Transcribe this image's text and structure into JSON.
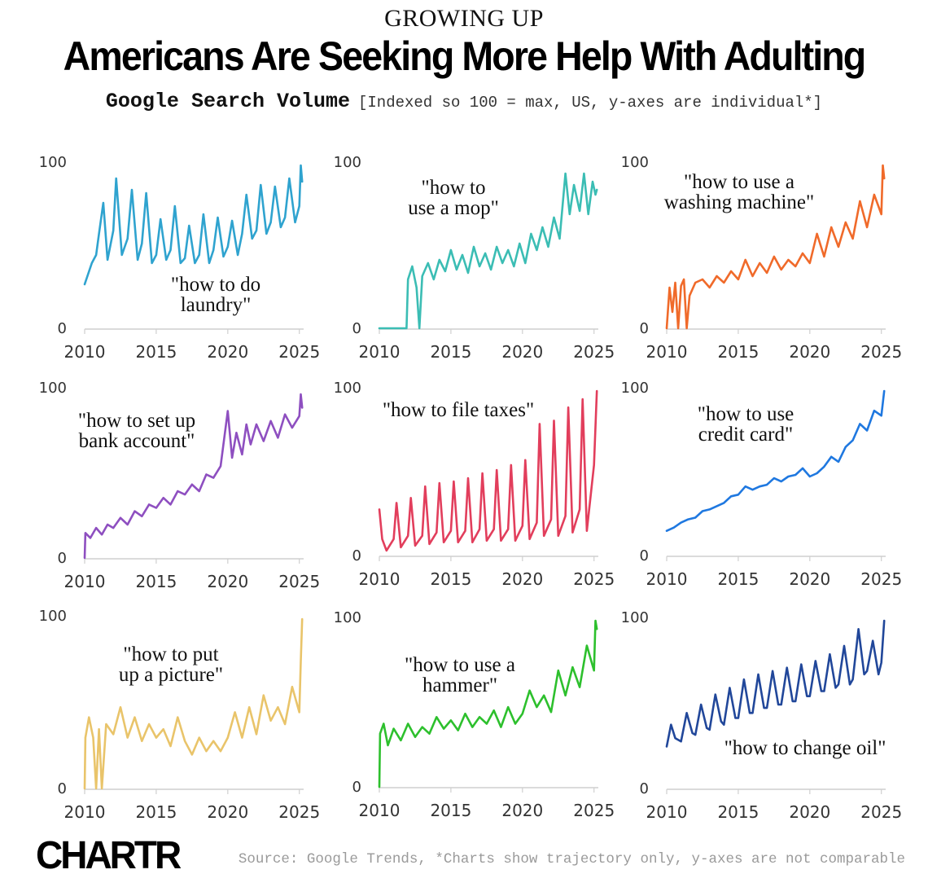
{
  "header": {
    "kicker": "GROWING UP",
    "title": "Americans Are Seeking More Help With Adulting",
    "subtitle_main": "Google Search Volume",
    "subtitle_note": "[Indexed so 100 = max, US, y-axes are individual*]"
  },
  "footer": {
    "logo": "CHARTR",
    "source": "Source: Google Trends, *Charts show trajectory only, y-axes are not comparable"
  },
  "chart_data": [
    {
      "type": "line",
      "title": "\"how to do laundry\"",
      "annotation": [
        "\"how to do",
        "laundry\""
      ],
      "color": "#2fa3cf",
      "xlim": [
        2010,
        2025.3
      ],
      "ylim": [
        0,
        100
      ],
      "yticks": [
        0,
        100
      ],
      "xticks": [
        2010,
        2015,
        2020,
        2025
      ],
      "x": [
        2010.0,
        2010.5,
        2010.8,
        2011.0,
        2011.3,
        2011.6,
        2012.0,
        2012.2,
        2012.6,
        2013.0,
        2013.3,
        2013.7,
        2014.0,
        2014.3,
        2014.7,
        2015.0,
        2015.3,
        2015.7,
        2016.0,
        2016.3,
        2016.7,
        2017.0,
        2017.3,
        2017.7,
        2018.0,
        2018.3,
        2018.7,
        2019.0,
        2019.3,
        2019.7,
        2020.0,
        2020.3,
        2020.7,
        2021.0,
        2021.3,
        2021.7,
        2022.0,
        2022.3,
        2022.7,
        2023.0,
        2023.3,
        2023.7,
        2024.0,
        2024.3,
        2024.7,
        2025.0,
        2025.1,
        2025.2
      ],
      "y": [
        27,
        40,
        45,
        58,
        77,
        42,
        60,
        92,
        45,
        55,
        85,
        42,
        52,
        83,
        40,
        45,
        67,
        42,
        48,
        75,
        40,
        43,
        63,
        40,
        45,
        70,
        40,
        48,
        68,
        44,
        50,
        66,
        45,
        58,
        82,
        55,
        60,
        88,
        58,
        65,
        87,
        62,
        68,
        92,
        65,
        75,
        100,
        90
      ]
    },
    {
      "type": "line",
      "title": "\"how to use a mop\"",
      "annotation": [
        "\"how to",
        "use a mop\""
      ],
      "color": "#3bbdb4",
      "xlim": [
        2010,
        2025.3
      ],
      "ylim": [
        0,
        100
      ],
      "yticks": [
        0,
        100
      ],
      "xticks": [
        2010,
        2015,
        2020,
        2025
      ],
      "x": [
        2010.0,
        2011.9,
        2012.0,
        2012.3,
        2012.6,
        2012.8,
        2013.0,
        2013.4,
        2013.8,
        2014.2,
        2014.6,
        2015.0,
        2015.4,
        2015.8,
        2016.2,
        2016.6,
        2017.0,
        2017.4,
        2017.8,
        2018.2,
        2018.6,
        2019.0,
        2019.4,
        2019.8,
        2020.2,
        2020.6,
        2021.0,
        2021.4,
        2021.8,
        2022.2,
        2022.6,
        2023.0,
        2023.3,
        2023.6,
        2024.0,
        2024.3,
        2024.6,
        2024.9,
        2025.1,
        2025.2
      ],
      "y": [
        0,
        0,
        30,
        38,
        25,
        0,
        32,
        40,
        30,
        42,
        35,
        48,
        36,
        45,
        34,
        50,
        38,
        46,
        36,
        50,
        40,
        48,
        38,
        52,
        40,
        58,
        48,
        62,
        50,
        68,
        55,
        95,
        70,
        88,
        72,
        95,
        70,
        90,
        82,
        85
      ]
    },
    {
      "type": "line",
      "title": "\"how to use a washing machine\"",
      "annotation": [
        "\"how to use a",
        "washing machine\""
      ],
      "color": "#f06a2a",
      "xlim": [
        2010,
        2025.3
      ],
      "ylim": [
        0,
        100
      ],
      "yticks": [
        0,
        100
      ],
      "xticks": [
        2010,
        2015,
        2020,
        2025
      ],
      "x": [
        2010.0,
        2010.2,
        2010.4,
        2010.6,
        2010.8,
        2011.0,
        2011.2,
        2011.4,
        2011.6,
        2012.0,
        2012.5,
        2013.0,
        2013.5,
        2014.0,
        2014.5,
        2015.0,
        2015.5,
        2016.0,
        2016.5,
        2017.0,
        2017.5,
        2018.0,
        2018.5,
        2019.0,
        2019.5,
        2020.0,
        2020.5,
        2021.0,
        2021.5,
        2022.0,
        2022.5,
        2023.0,
        2023.5,
        2024.0,
        2024.5,
        2025.0,
        2025.1,
        2025.2
      ],
      "y": [
        0,
        25,
        10,
        28,
        0,
        26,
        30,
        0,
        20,
        28,
        30,
        25,
        32,
        28,
        35,
        30,
        42,
        32,
        40,
        34,
        44,
        36,
        42,
        38,
        46,
        40,
        58,
        44,
        62,
        50,
        65,
        55,
        78,
        62,
        82,
        70,
        100,
        92
      ]
    },
    {
      "type": "line",
      "title": "\"how to set up bank account\"",
      "annotation": [
        "\"how to set up",
        "bank account\""
      ],
      "color": "#8e4fc0",
      "xlim": [
        2010,
        2025.3
      ],
      "ylim": [
        0,
        100
      ],
      "yticks": [
        0,
        100
      ],
      "xticks": [
        2010,
        2015,
        2020,
        2025
      ],
      "x": [
        2010.0,
        2010.05,
        2010.4,
        2010.8,
        2011.2,
        2011.6,
        2012.0,
        2012.5,
        2013.0,
        2013.5,
        2014.0,
        2014.5,
        2015.0,
        2015.5,
        2016.0,
        2016.5,
        2017.0,
        2017.5,
        2018.0,
        2018.5,
        2019.0,
        2019.5,
        2020.0,
        2020.3,
        2020.6,
        2021.0,
        2021.3,
        2021.6,
        2022.0,
        2022.5,
        2023.0,
        2023.5,
        2024.0,
        2024.5,
        2025.0,
        2025.1,
        2025.2
      ],
      "y": [
        0,
        15,
        12,
        18,
        14,
        20,
        18,
        24,
        20,
        28,
        25,
        32,
        30,
        36,
        32,
        40,
        38,
        44,
        40,
        50,
        48,
        55,
        88,
        60,
        75,
        62,
        80,
        68,
        80,
        70,
        82,
        72,
        86,
        78,
        85,
        98,
        90
      ]
    },
    {
      "type": "line",
      "title": "\"how to file taxes\"",
      "annotation": [
        "\"how to file taxes\""
      ],
      "color": "#e23e5c",
      "xlim": [
        2010,
        2025.3
      ],
      "ylim": [
        0,
        100
      ],
      "yticks": [
        0,
        100
      ],
      "xticks": [
        2010,
        2015,
        2020,
        2025
      ],
      "x": [
        2010.0,
        2010.2,
        2010.5,
        2011.0,
        2011.2,
        2011.5,
        2012.0,
        2012.2,
        2012.5,
        2013.0,
        2013.2,
        2013.5,
        2014.0,
        2014.2,
        2014.5,
        2015.0,
        2015.2,
        2015.5,
        2016.0,
        2016.2,
        2016.5,
        2017.0,
        2017.2,
        2017.5,
        2018.0,
        2018.2,
        2018.5,
        2019.0,
        2019.2,
        2019.5,
        2020.0,
        2020.2,
        2020.5,
        2021.0,
        2021.2,
        2021.5,
        2022.0,
        2022.2,
        2022.5,
        2023.0,
        2023.2,
        2023.5,
        2024.0,
        2024.2,
        2024.5,
        2025.0,
        2025.2
      ],
      "y": [
        28,
        10,
        3,
        10,
        32,
        5,
        12,
        35,
        6,
        12,
        42,
        7,
        14,
        44,
        8,
        15,
        45,
        8,
        15,
        47,
        8,
        16,
        50,
        9,
        16,
        52,
        9,
        16,
        55,
        9,
        18,
        58,
        10,
        20,
        80,
        12,
        22,
        82,
        12,
        24,
        90,
        14,
        28,
        95,
        15,
        55,
        100
      ]
    },
    {
      "type": "line",
      "title": "\"how to use credit card\"",
      "annotation": [
        "\"how to use",
        "credit card\""
      ],
      "color": "#1f78e0",
      "xlim": [
        2010,
        2025.3
      ],
      "ylim": [
        0,
        100
      ],
      "yticks": [
        0,
        100
      ],
      "xticks": [
        2010,
        2015,
        2020,
        2025
      ],
      "x": [
        2010.0,
        2010.5,
        2011.0,
        2011.5,
        2012.0,
        2012.5,
        2013.0,
        2013.5,
        2014.0,
        2014.5,
        2015.0,
        2015.5,
        2016.0,
        2016.5,
        2017.0,
        2017.5,
        2018.0,
        2018.5,
        2019.0,
        2019.5,
        2020.0,
        2020.5,
        2021.0,
        2021.5,
        2022.0,
        2022.5,
        2023.0,
        2023.5,
        2024.0,
        2024.5,
        2025.0,
        2025.2
      ],
      "y": [
        15,
        17,
        20,
        22,
        23,
        27,
        28,
        30,
        32,
        36,
        37,
        42,
        40,
        42,
        43,
        47,
        45,
        48,
        49,
        53,
        48,
        50,
        54,
        60,
        57,
        66,
        70,
        80,
        76,
        88,
        85,
        100
      ]
    },
    {
      "type": "line",
      "title": "\"how to put up a picture\"",
      "annotation": [
        "\"how to put",
        "up a picture\""
      ],
      "color": "#e9c46a",
      "xlim": [
        2010,
        2025.3
      ],
      "ylim": [
        0,
        100
      ],
      "yticks": [
        0,
        100
      ],
      "xticks": [
        2010,
        2015,
        2020,
        2025
      ],
      "x": [
        2010.0,
        2010.05,
        2010.3,
        2010.6,
        2010.8,
        2011.0,
        2011.2,
        2011.5,
        2012.0,
        2012.5,
        2013.0,
        2013.5,
        2014.0,
        2014.5,
        2015.0,
        2015.5,
        2016.0,
        2016.5,
        2017.0,
        2017.5,
        2018.0,
        2018.5,
        2019.0,
        2019.5,
        2020.0,
        2020.5,
        2021.0,
        2021.5,
        2022.0,
        2022.5,
        2023.0,
        2023.5,
        2024.0,
        2024.5,
        2025.0,
        2025.1,
        2025.2
      ],
      "y": [
        0,
        30,
        42,
        30,
        0,
        35,
        0,
        38,
        32,
        48,
        30,
        42,
        28,
        38,
        30,
        35,
        25,
        42,
        28,
        20,
        30,
        22,
        28,
        22,
        30,
        45,
        30,
        48,
        32,
        55,
        40,
        48,
        38,
        60,
        45,
        75,
        100
      ]
    },
    {
      "type": "line",
      "title": "\"how to use a hammer\"",
      "annotation": [
        "\"how to use a",
        "hammer\""
      ],
      "color": "#2dc02d",
      "xlim": [
        2010,
        2025.3
      ],
      "ylim": [
        0,
        100
      ],
      "yticks": [
        0,
        100
      ],
      "xticks": [
        2010,
        2015,
        2020,
        2025
      ],
      "x": [
        2010.0,
        2010.05,
        2010.3,
        2010.6,
        2011.0,
        2011.5,
        2012.0,
        2012.5,
        2013.0,
        2013.5,
        2014.0,
        2014.5,
        2015.0,
        2015.5,
        2016.0,
        2016.5,
        2017.0,
        2017.5,
        2018.0,
        2018.5,
        2019.0,
        2019.5,
        2020.0,
        2020.5,
        2021.0,
        2021.5,
        2022.0,
        2022.5,
        2023.0,
        2023.5,
        2024.0,
        2024.5,
        2025.0,
        2025.1,
        2025.2
      ],
      "y": [
        0,
        32,
        38,
        25,
        35,
        28,
        38,
        30,
        36,
        32,
        42,
        35,
        40,
        34,
        44,
        36,
        42,
        38,
        46,
        36,
        48,
        38,
        44,
        58,
        48,
        55,
        45,
        70,
        55,
        72,
        60,
        85,
        70,
        100,
        95
      ]
    },
    {
      "type": "line",
      "title": "\"how to change oil\"",
      "annotation": [
        "\"how to change oil\""
      ],
      "color": "#21479a",
      "xlim": [
        2010,
        2025.3
      ],
      "ylim": [
        0,
        100
      ],
      "yticks": [
        0,
        100
      ],
      "xticks": [
        2010,
        2015,
        2020,
        2025
      ],
      "x": [
        2010.0,
        2010.3,
        2010.6,
        2011.0,
        2011.4,
        2011.8,
        2012.0,
        2012.4,
        2012.8,
        2013.0,
        2013.4,
        2013.8,
        2014.0,
        2014.4,
        2014.8,
        2015.0,
        2015.4,
        2015.8,
        2016.0,
        2016.4,
        2016.8,
        2017.0,
        2017.4,
        2017.8,
        2018.0,
        2018.4,
        2018.8,
        2019.0,
        2019.4,
        2019.8,
        2020.0,
        2020.4,
        2020.8,
        2021.0,
        2021.4,
        2021.8,
        2022.0,
        2022.4,
        2022.8,
        2023.0,
        2023.4,
        2023.8,
        2024.0,
        2024.4,
        2024.8,
        2025.0,
        2025.2
      ],
      "y": [
        25,
        38,
        30,
        28,
        45,
        33,
        32,
        50,
        36,
        35,
        56,
        40,
        38,
        60,
        42,
        42,
        65,
        45,
        45,
        68,
        48,
        48,
        70,
        50,
        50,
        72,
        52,
        52,
        74,
        55,
        55,
        76,
        58,
        58,
        80,
        60,
        62,
        85,
        62,
        65,
        95,
        68,
        70,
        88,
        68,
        75,
        100
      ]
    }
  ]
}
